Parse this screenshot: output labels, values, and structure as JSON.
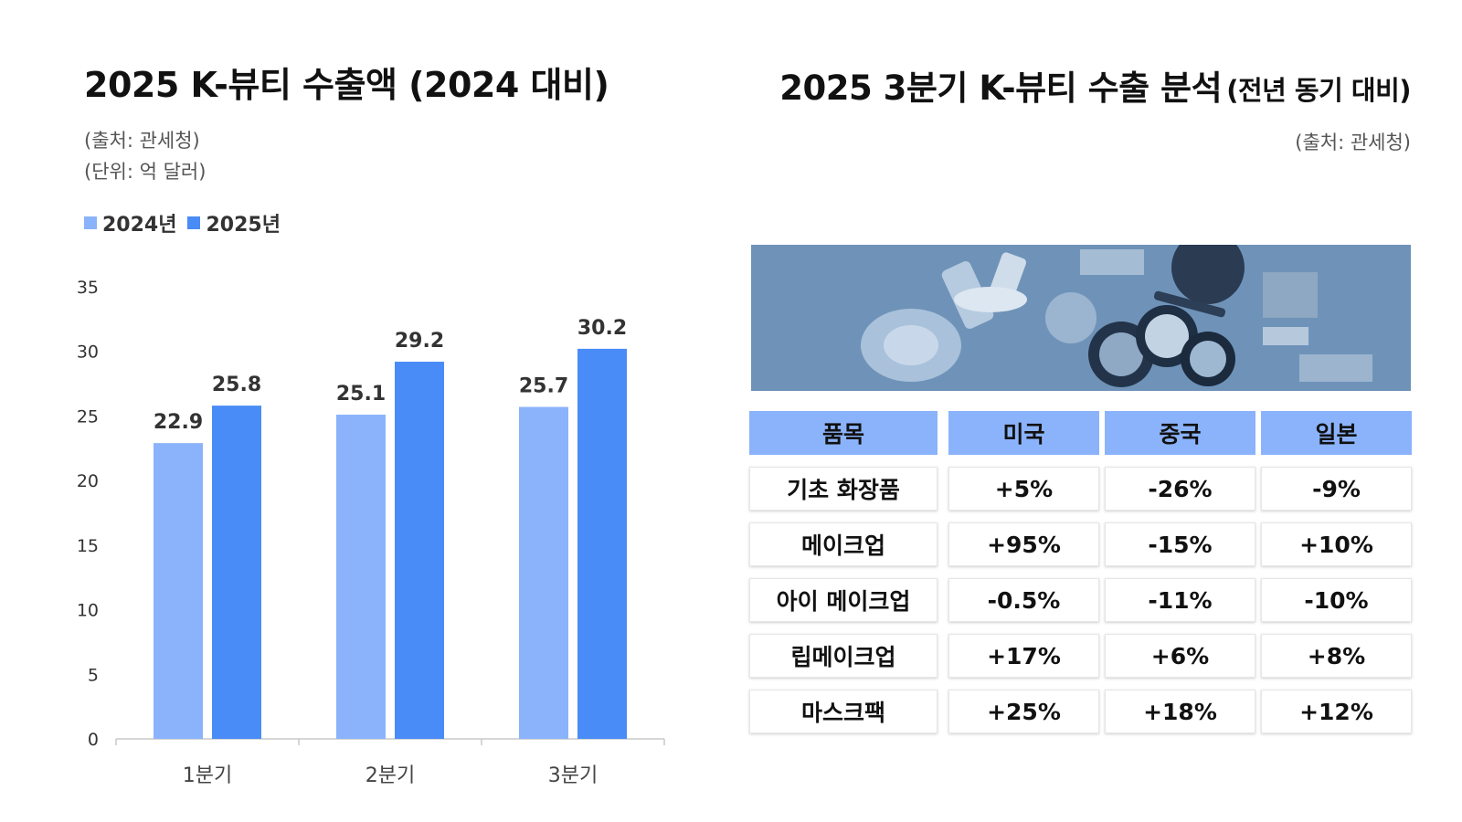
{
  "left": {
    "title": "2025 K-뷰티 수출액 (2024 대비)",
    "source": "(출처: 관세청)",
    "unit": "(단위: 억 달러)"
  },
  "colors": {
    "series_2024": "#8bb3fb",
    "series_2025": "#4a8cf7",
    "header_bg": "#8bb3fb",
    "photo_tint": "#6f93b8"
  },
  "chart_data": {
    "type": "bar",
    "categories": [
      "1분기",
      "2분기",
      "3분기"
    ],
    "series": [
      {
        "name": "2024년",
        "values": [
          22.9,
          25.1,
          25.7
        ]
      },
      {
        "name": "2025년",
        "values": [
          25.8,
          29.2,
          30.2
        ]
      }
    ],
    "ylim": [
      0,
      35
    ],
    "yticks": [
      0,
      5,
      10,
      15,
      20,
      25,
      30,
      35
    ],
    "grid": false,
    "legend": "top-left",
    "data_labels": true
  },
  "right": {
    "title_main": "2025 3분기 K-뷰티 수출 분석",
    "title_sub": "(전년 동기 대비)",
    "source": "(출처: 관세청)",
    "photo": "cosmetics-photo"
  },
  "table": {
    "headers": [
      "품목",
      "미국",
      "중국",
      "일본"
    ],
    "rows": [
      [
        "기초 화장품",
        "+5%",
        "-26%",
        "-9%"
      ],
      [
        "메이크업",
        "+95%",
        "-15%",
        "+10%"
      ],
      [
        "아이 메이크업",
        "-0.5%",
        "-11%",
        "-10%"
      ],
      [
        "립메이크업",
        "+17%",
        "+6%",
        "+8%"
      ],
      [
        "마스크팩",
        "+25%",
        "+18%",
        "+12%"
      ]
    ]
  }
}
